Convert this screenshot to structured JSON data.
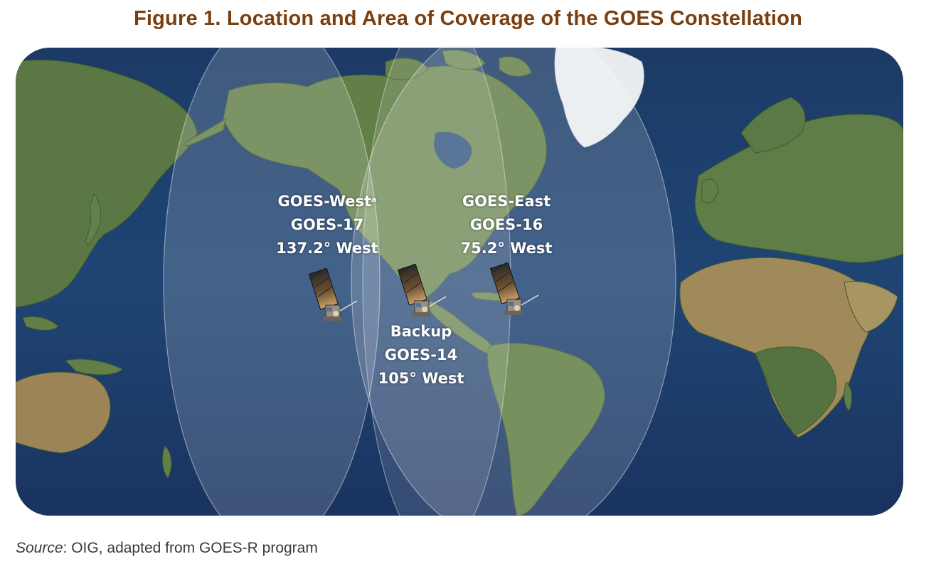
{
  "title": "Figure 1. Location and Area of Coverage of the GOES Constellation",
  "satellites": {
    "west": {
      "line1": "GOES-West",
      "superscript": "a",
      "line2": "GOES-17",
      "line3": "137.2° West"
    },
    "east": {
      "line1": "GOES-East",
      "line2": "GOES-16",
      "line3": "75.2° West"
    },
    "backup": {
      "line1": "Backup",
      "line2": "GOES-14",
      "line3": "105° West"
    }
  },
  "source": {
    "label": "Source",
    "text": ": OIG, adapted from GOES-R program"
  },
  "colors": {
    "title": "#7a3f10",
    "ocean": "#1d3a68",
    "land": "#55733f",
    "ice": "#e8ecef",
    "coverage": "#ffffff"
  },
  "icons": [
    "satellite-icon"
  ]
}
